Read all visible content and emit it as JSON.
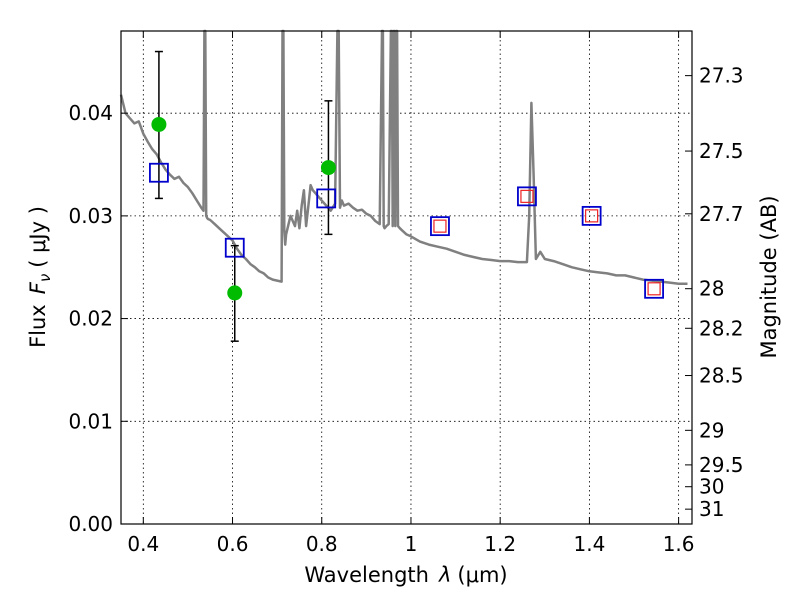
{
  "chart_data": {
    "type": "scatter",
    "xlabel_text": "Wavelength",
    "xlabel_symbol": "λ",
    "xlabel_unit": "(μm)",
    "ylabel_text": "Flux",
    "ylabel_symbol": "F",
    "ylabel_subscript": "ν",
    "ylabel_unit": "( μJy )",
    "y2label": "Magnitude (AB)",
    "xlim": [
      0.35,
      1.63
    ],
    "ylim": [
      0.0,
      0.048
    ],
    "grid": true,
    "x_ticks": [
      0.4,
      0.6,
      0.8,
      1.0,
      1.2,
      1.4,
      1.6
    ],
    "x_tick_labels": [
      "0.4",
      "0.6",
      "0.8",
      "1",
      "1.2",
      "1.4",
      "1.6"
    ],
    "y_ticks": [
      0.0,
      0.01,
      0.02,
      0.03,
      0.04
    ],
    "y_tick_labels": [
      "0.00",
      "0.01",
      "0.02",
      "0.03",
      "0.04"
    ],
    "mag_ticks": [
      27.3,
      27.5,
      27.7,
      28,
      28.2,
      28.5,
      29,
      29.5,
      30,
      31
    ],
    "mag_tick_labels": [
      "27.3",
      "27.5",
      "27.7",
      "28",
      "28.2",
      "28.5",
      "29",
      "29.5",
      "30",
      "31"
    ],
    "colors": {
      "model": "#808080",
      "observed": "#00bb00",
      "model_photometry": "#0000cc",
      "model_photometry_inner": "#ee2222",
      "errorbar": "#000000"
    },
    "series": [
      {
        "kind": "line",
        "x": [
          0.35,
          0.36,
          0.37,
          0.38,
          0.39,
          0.4,
          0.41,
          0.42,
          0.43,
          0.44,
          0.45,
          0.46,
          0.47,
          0.48,
          0.49,
          0.5,
          0.51,
          0.52,
          0.53,
          0.535,
          0.537,
          0.539,
          0.541,
          0.543,
          0.545,
          0.55,
          0.56,
          0.57,
          0.58,
          0.59,
          0.6,
          0.61,
          0.62,
          0.63,
          0.64,
          0.65,
          0.66,
          0.67,
          0.68,
          0.69,
          0.7,
          0.71,
          0.712,
          0.714,
          0.716,
          0.718,
          0.72,
          0.73,
          0.74,
          0.745,
          0.75,
          0.755,
          0.76,
          0.765,
          0.77,
          0.775,
          0.78,
          0.79,
          0.8,
          0.81,
          0.82,
          0.83,
          0.835,
          0.838,
          0.841,
          0.845,
          0.85,
          0.86,
          0.87,
          0.88,
          0.89,
          0.9,
          0.91,
          0.92,
          0.93,
          0.935,
          0.937,
          0.939,
          0.941,
          0.945,
          0.95,
          0.955,
          0.957,
          0.959,
          0.961,
          0.963,
          0.965,
          0.967,
          0.969,
          0.971,
          0.975,
          0.98,
          0.99,
          1.0,
          1.02,
          1.04,
          1.06,
          1.08,
          1.1,
          1.12,
          1.14,
          1.16,
          1.18,
          1.2,
          1.22,
          1.24,
          1.26,
          1.265,
          1.27,
          1.275,
          1.28,
          1.29,
          1.3,
          1.32,
          1.34,
          1.36,
          1.38,
          1.4,
          1.42,
          1.44,
          1.46,
          1.48,
          1.5,
          1.52,
          1.54,
          1.56,
          1.58,
          1.6,
          1.62
        ],
        "y": [
          0.0418,
          0.04,
          0.0395,
          0.039,
          0.0392,
          0.038,
          0.0372,
          0.0365,
          0.036,
          0.0352,
          0.0345,
          0.034,
          0.0336,
          0.0338,
          0.0332,
          0.0328,
          0.0322,
          0.0315,
          0.0308,
          0.0305,
          0.048,
          0.048,
          0.03,
          0.0298,
          0.0297,
          0.0296,
          0.0292,
          0.0288,
          0.0284,
          0.028,
          0.0276,
          0.0268,
          0.0262,
          0.0258,
          0.0253,
          0.025,
          0.0246,
          0.0244,
          0.024,
          0.0238,
          0.0237,
          0.0236,
          0.048,
          0.048,
          0.0285,
          0.0272,
          0.0282,
          0.03,
          0.029,
          0.0305,
          0.0288,
          0.031,
          0.0325,
          0.029,
          0.031,
          0.033,
          0.0325,
          0.032,
          0.0315,
          0.031,
          0.0305,
          0.0312,
          0.048,
          0.048,
          0.0308,
          0.0315,
          0.031,
          0.0312,
          0.0308,
          0.0305,
          0.0306,
          0.0302,
          0.03,
          0.0295,
          0.0292,
          0.048,
          0.048,
          0.029,
          0.0288,
          0.029,
          0.0292,
          0.048,
          0.048,
          0.029,
          0.048,
          0.048,
          0.029,
          0.048,
          0.048,
          0.029,
          0.0288,
          0.0286,
          0.0282,
          0.028,
          0.0275,
          0.0272,
          0.027,
          0.0268,
          0.0265,
          0.0262,
          0.026,
          0.0258,
          0.0257,
          0.0256,
          0.0256,
          0.0255,
          0.0255,
          0.03,
          0.041,
          0.034,
          0.0258,
          0.0265,
          0.0258,
          0.0256,
          0.0253,
          0.025,
          0.0248,
          0.0246,
          0.0245,
          0.0244,
          0.0242,
          0.0242,
          0.024,
          0.0238,
          0.0237,
          0.0236,
          0.0235,
          0.0234,
          0.0234
        ]
      },
      {
        "kind": "observed",
        "x": [
          0.435,
          0.605,
          0.815
        ],
        "y": [
          0.0389,
          0.0225,
          0.0347
        ],
        "yerr_low": [
          0.0317,
          0.0178,
          0.0282
        ],
        "yerr_high": [
          0.046,
          0.0271,
          0.0412
        ]
      },
      {
        "kind": "model_photometry",
        "x": [
          0.435,
          0.605,
          0.81,
          1.065,
          1.26,
          1.405,
          1.545
        ],
        "y": [
          0.0342,
          0.0269,
          0.0317,
          0.029,
          0.0319,
          0.03,
          0.0229
        ],
        "inner": [
          false,
          false,
          false,
          true,
          true,
          true,
          true
        ]
      }
    ]
  }
}
